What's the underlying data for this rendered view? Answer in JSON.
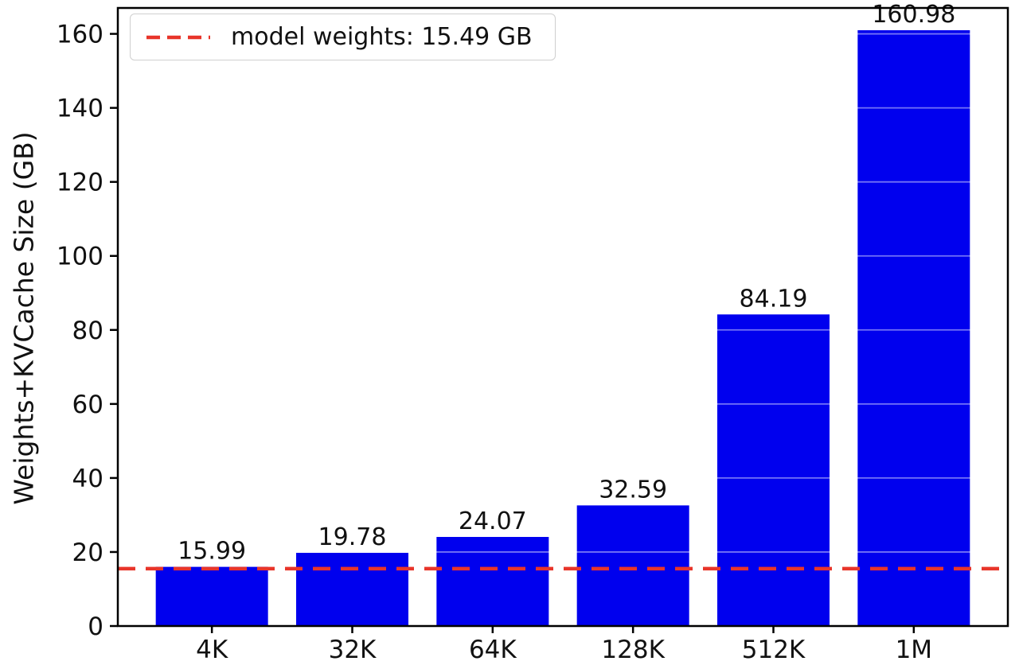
{
  "chart_data": {
    "type": "bar",
    "title": "",
    "categories": [
      "4K",
      "32K",
      "64K",
      "128K",
      "512K",
      "1M"
    ],
    "values": [
      15.99,
      19.78,
      24.07,
      32.59,
      84.19,
      160.98
    ],
    "bar_labels": [
      "15.99",
      "19.78",
      "24.07",
      "32.59",
      "84.19",
      "160.98"
    ],
    "xlabel": "",
    "ylabel": "Weights+KVCache Size (GB)",
    "ylim": [
      0,
      167
    ],
    "yticks": [
      0,
      20,
      40,
      60,
      80,
      100,
      120,
      140,
      160
    ],
    "bar_color": "#0000ee",
    "grid": "white-overlay-on-bars",
    "reference_line": {
      "value": 15.49,
      "color": "#e8352a",
      "style": "dashed"
    },
    "legend": {
      "position": "upper-left",
      "entries": [
        {
          "label": "model weights: 15.49 GB",
          "marker": "dashed-line",
          "color": "#e8352a"
        }
      ]
    }
  }
}
